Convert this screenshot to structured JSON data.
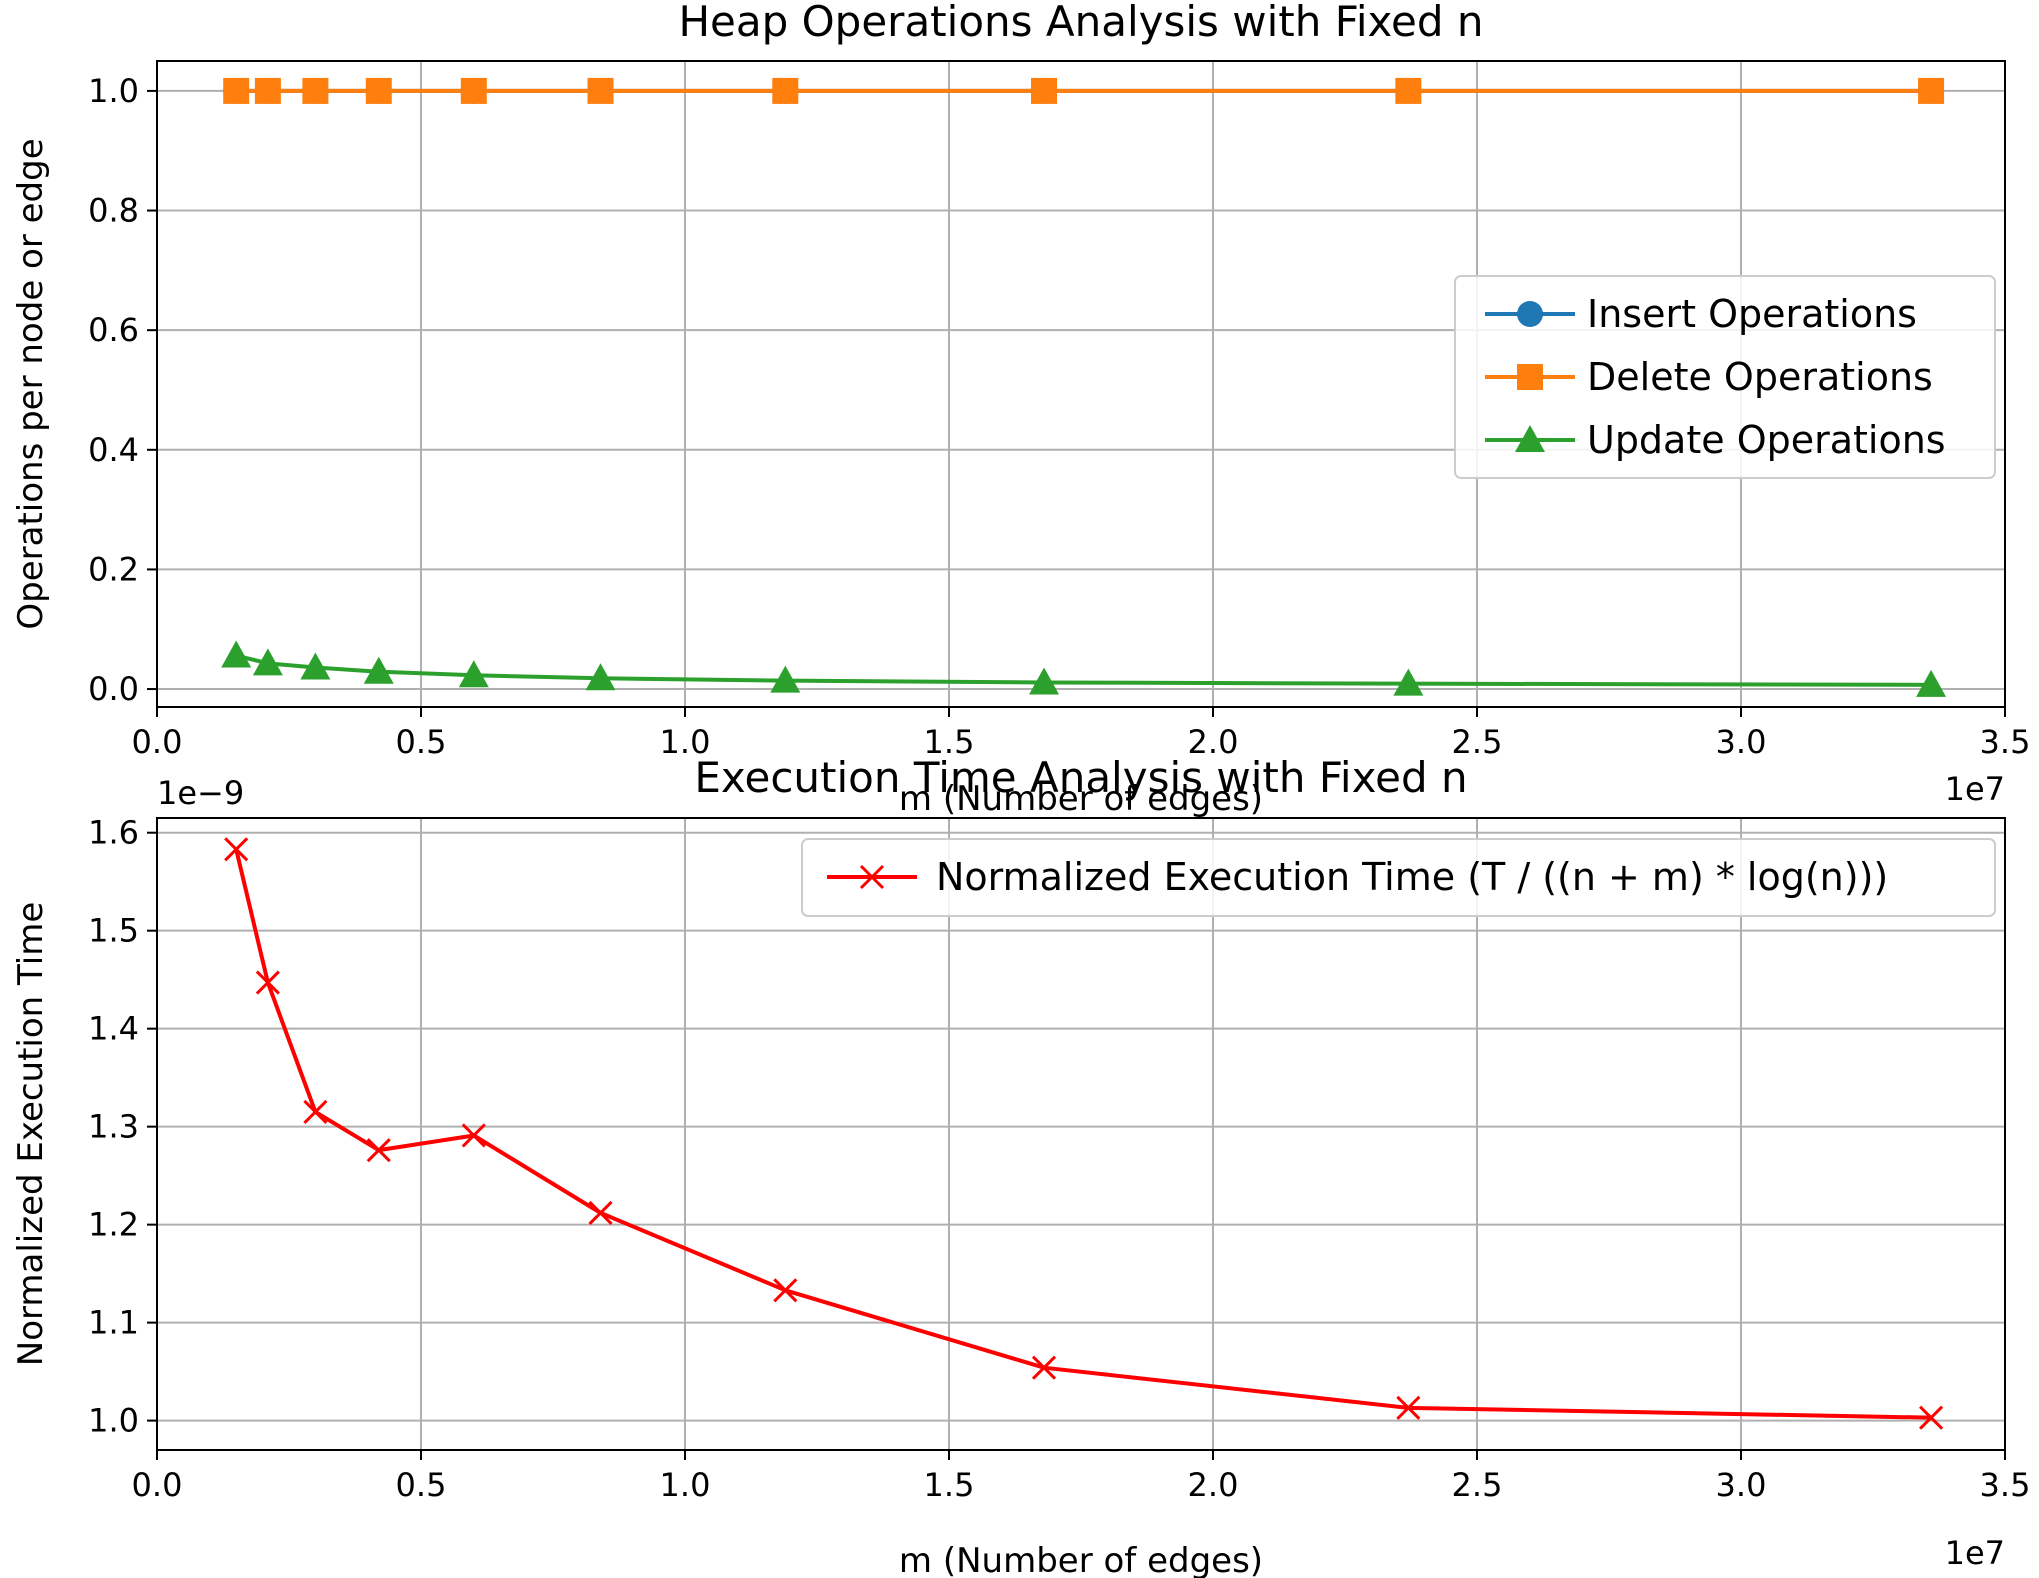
{
  "chart_data": [
    {
      "type": "line",
      "title": "Heap Operations Analysis with Fixed n",
      "xlabel": "m (Number of edges)",
      "ylabel": "Operations per node or edge",
      "x_offset_label": "1e7",
      "xlim": [
        0,
        3.5
      ],
      "ylim": [
        -0.03,
        1.05
      ],
      "xticks": [
        0,
        0.5,
        1.0,
        1.5,
        2.0,
        2.5,
        3.0,
        3.5
      ],
      "xtick_labels": [
        "0.0",
        "0.5",
        "1.0",
        "1.5",
        "2.0",
        "2.5",
        "3.0",
        "3.5"
      ],
      "yticks": [
        0,
        0.2,
        0.4,
        0.6,
        0.8,
        1.0
      ],
      "ytick_labels": [
        "0.0",
        "0.2",
        "0.4",
        "0.6",
        "0.8",
        "1.0"
      ],
      "grid": true,
      "legend_position": "center-right",
      "x": [
        0.15,
        0.21,
        0.3,
        0.42,
        0.6,
        0.84,
        1.19,
        1.68,
        2.37,
        3.36
      ],
      "series": [
        {
          "name": "Insert Operations",
          "color": "#1f77b4",
          "marker": "circle",
          "values": [
            1.0,
            1.0,
            1.0,
            1.0,
            1.0,
            1.0,
            1.0,
            1.0,
            1.0,
            1.0
          ]
        },
        {
          "name": "Delete Operations",
          "color": "#ff7f0e",
          "marker": "square",
          "values": [
            1.0,
            1.0,
            1.0,
            1.0,
            1.0,
            1.0,
            1.0,
            1.0,
            1.0,
            1.0
          ]
        },
        {
          "name": "Update Operations",
          "color": "#2ca02c",
          "marker": "triangle",
          "values": [
            0.056,
            0.043,
            0.036,
            0.029,
            0.023,
            0.018,
            0.014,
            0.011,
            0.009,
            0.007
          ]
        }
      ]
    },
    {
      "type": "line",
      "title": "Execution Time Analysis with Fixed n",
      "xlabel": "m (Number of edges)",
      "ylabel": "Normalized Execution Time",
      "x_offset_label": "1e7",
      "y_offset_label": "1e−9",
      "xlim": [
        0,
        3.5
      ],
      "ylim": [
        0.97,
        1.615
      ],
      "xticks": [
        0,
        0.5,
        1.0,
        1.5,
        2.0,
        2.5,
        3.0,
        3.5
      ],
      "xtick_labels": [
        "0.0",
        "0.5",
        "1.0",
        "1.5",
        "2.0",
        "2.5",
        "3.0",
        "3.5"
      ],
      "yticks": [
        1.0,
        1.1,
        1.2,
        1.3,
        1.4,
        1.5,
        1.6
      ],
      "ytick_labels": [
        "1.0",
        "1.1",
        "1.2",
        "1.3",
        "1.4",
        "1.5",
        "1.6"
      ],
      "grid": true,
      "legend_position": "top-right",
      "x": [
        0.15,
        0.21,
        0.3,
        0.42,
        0.6,
        0.84,
        1.19,
        1.68,
        2.37,
        3.36
      ],
      "series": [
        {
          "name": "Normalized Execution Time (T / ((n + m) * log(n)))",
          "color": "#ff0000",
          "marker": "x",
          "values": [
            1.583,
            1.447,
            1.315,
            1.276,
            1.291,
            1.212,
            1.133,
            1.054,
            1.013,
            1.003
          ]
        }
      ]
    }
  ]
}
